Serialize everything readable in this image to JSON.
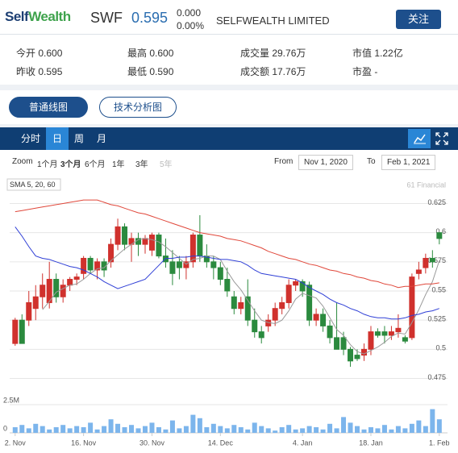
{
  "header": {
    "logo": [
      "Self",
      "Wealth"
    ],
    "symbol": "SWF",
    "price": "0.595",
    "change": "0.000",
    "change_pct": "0.00%",
    "company": "SELFWEALTH LIMITED",
    "follow_button": "关注"
  },
  "stats": [
    [
      "今开 0.600",
      "最高 0.600",
      "成交量 29.76万",
      "市值 1.22亿"
    ],
    [
      "昨收 0.595",
      "最低 0.590",
      "成交额 17.76万",
      "市盈 -"
    ]
  ],
  "view_tabs": [
    "普通线图",
    "技术分析图"
  ],
  "period_tabs": [
    "分时",
    "日",
    "周",
    "月"
  ],
  "range_selector": {
    "label": "Zoom",
    "buttons": [
      "1个月",
      "3个月",
      "6个月",
      "1年",
      "3年",
      "5年"
    ],
    "from_label": "From",
    "from": "Nov 1, 2020",
    "to_label": "To",
    "to": "Feb 1, 2021"
  },
  "chart_data": {
    "type": "candlestick",
    "indicator_label": "SMA 5, 20, 60",
    "credit": "61 Financial",
    "xlim": [
      -0.8,
      63.2
    ],
    "xticks": [
      {
        "value": 0,
        "label": "2. Nov"
      },
      {
        "value": 10,
        "label": "16. Nov"
      },
      {
        "value": 20,
        "label": "30. Nov"
      },
      {
        "value": 30,
        "label": "14. Dec"
      },
      {
        "value": 42,
        "label": "4. Jan"
      },
      {
        "value": 52,
        "label": "18. Jan"
      },
      {
        "value": 62,
        "label": "1. Feb"
      }
    ],
    "ylim": [
      0.465,
      0.635
    ],
    "yticks": [
      0.475,
      0.5,
      0.525,
      0.55,
      0.575,
      0.6,
      0.625
    ],
    "grid": true,
    "colors": {
      "up": "#d0312d",
      "down": "#2b8a3e"
    },
    "open": [
      0.505,
      0.525,
      0.525,
      0.535,
      0.545,
      0.54,
      0.56,
      0.545,
      0.555,
      0.56,
      0.565,
      0.578,
      0.568,
      0.575,
      0.575,
      0.59,
      0.605,
      0.59,
      0.595,
      0.59,
      0.585,
      0.598,
      0.58,
      0.575,
      0.575,
      0.57,
      0.575,
      0.598,
      0.58,
      0.575,
      0.57,
      0.56,
      0.545,
      0.535,
      0.545,
      0.525,
      0.515,
      0.52,
      0.525,
      0.535,
      0.54,
      0.555,
      0.558,
      0.555,
      0.525,
      0.53,
      0.52,
      0.51,
      0.51,
      0.5,
      0.495,
      0.495,
      0.5,
      0.515,
      0.515,
      0.512,
      0.515,
      0.51,
      0.51,
      0.565,
      0.57,
      0.578,
      0.6
    ],
    "high": [
      0.527,
      0.53,
      0.55,
      0.555,
      0.565,
      0.575,
      0.565,
      0.56,
      0.562,
      0.565,
      0.58,
      0.58,
      0.578,
      0.578,
      0.595,
      0.612,
      0.608,
      0.6,
      0.6,
      0.598,
      0.6,
      0.6,
      0.595,
      0.585,
      0.58,
      0.58,
      0.6,
      0.615,
      0.59,
      0.58,
      0.575,
      0.57,
      0.55,
      0.545,
      0.56,
      0.535,
      0.52,
      0.53,
      0.54,
      0.545,
      0.56,
      0.56,
      0.56,
      0.558,
      0.535,
      0.535,
      0.525,
      0.54,
      0.515,
      0.502,
      0.5,
      0.505,
      0.52,
      0.518,
      0.52,
      0.52,
      0.53,
      0.512,
      0.565,
      0.575,
      0.582,
      0.585,
      0.6
    ],
    "low": [
      0.503,
      0.505,
      0.52,
      0.525,
      0.535,
      0.535,
      0.54,
      0.54,
      0.55,
      0.555,
      0.56,
      0.565,
      0.56,
      0.562,
      0.57,
      0.585,
      0.585,
      0.575,
      0.58,
      0.582,
      0.58,
      0.578,
      0.57,
      0.555,
      0.56,
      0.56,
      0.57,
      0.575,
      0.57,
      0.56,
      0.555,
      0.545,
      0.53,
      0.53,
      0.52,
      0.51,
      0.505,
      0.515,
      0.52,
      0.53,
      0.535,
      0.55,
      0.545,
      0.52,
      0.52,
      0.515,
      0.505,
      0.5,
      0.495,
      0.485,
      0.49,
      0.49,
      0.495,
      0.51,
      0.505,
      0.508,
      0.51,
      0.505,
      0.508,
      0.56,
      0.565,
      0.57,
      0.59
    ],
    "close": [
      0.525,
      0.505,
      0.54,
      0.545,
      0.555,
      0.56,
      0.545,
      0.555,
      0.56,
      0.562,
      0.578,
      0.568,
      0.575,
      0.568,
      0.59,
      0.605,
      0.59,
      0.595,
      0.59,
      0.595,
      0.598,
      0.58,
      0.575,
      0.565,
      0.57,
      0.575,
      0.598,
      0.58,
      0.575,
      0.57,
      0.56,
      0.55,
      0.535,
      0.54,
      0.525,
      0.515,
      0.51,
      0.525,
      0.535,
      0.54,
      0.555,
      0.558,
      0.55,
      0.525,
      0.53,
      0.52,
      0.51,
      0.5,
      0.5,
      0.49,
      0.492,
      0.5,
      0.515,
      0.512,
      0.512,
      0.515,
      0.518,
      0.507,
      0.562,
      0.568,
      0.578,
      0.575,
      0.595
    ],
    "lines": [
      {
        "color": "#9a9a9a",
        "values": [
          null,
          null,
          null,
          null,
          0.534,
          0.541,
          0.549,
          0.552,
          0.555,
          0.556,
          0.56,
          0.565,
          0.569,
          0.57,
          0.576,
          0.581,
          0.586,
          0.59,
          0.594,
          0.595,
          0.594,
          0.592,
          0.588,
          0.583,
          0.578,
          0.573,
          0.577,
          0.578,
          0.58,
          0.58,
          0.577,
          0.567,
          0.558,
          0.551,
          0.542,
          0.533,
          0.525,
          0.523,
          0.522,
          0.525,
          0.533,
          0.543,
          0.548,
          0.546,
          0.544,
          0.537,
          0.527,
          0.517,
          0.512,
          0.504,
          0.498,
          0.496,
          0.499,
          0.502,
          0.506,
          0.511,
          0.514,
          0.513,
          0.523,
          0.534,
          0.547,
          0.558,
          0.576
        ]
      },
      {
        "color": "#2f3fd6",
        "values": [
          0.605,
          0.597,
          0.588,
          0.58,
          0.578,
          0.577,
          0.575,
          0.573,
          0.571,
          0.57,
          0.568,
          0.565,
          0.562,
          0.558,
          0.555,
          0.552,
          0.554,
          0.556,
          0.558,
          0.56,
          0.566,
          0.572,
          0.578,
          0.578,
          0.579,
          0.579,
          0.58,
          0.58,
          0.579,
          0.578,
          0.577,
          0.577,
          0.576,
          0.575,
          0.572,
          0.568,
          0.565,
          0.564,
          0.563,
          0.562,
          0.561,
          0.56,
          0.557,
          0.553,
          0.55,
          0.547,
          0.543,
          0.54,
          0.538,
          0.535,
          0.533,
          0.53,
          0.528,
          0.527,
          0.527,
          0.526,
          0.526,
          0.527,
          0.529,
          0.53,
          0.532,
          0.533,
          0.535
        ]
      },
      {
        "color": "#e0473a",
        "values": [
          0.618,
          0.619,
          0.62,
          0.621,
          0.622,
          0.623,
          0.624,
          0.625,
          0.626,
          0.627,
          0.628,
          0.628,
          0.628,
          0.626,
          0.624,
          0.623,
          0.621,
          0.619,
          0.617,
          0.616,
          0.614,
          0.612,
          0.61,
          0.608,
          0.606,
          0.604,
          0.602,
          0.6,
          0.599,
          0.598,
          0.597,
          0.595,
          0.594,
          0.593,
          0.591,
          0.589,
          0.587,
          0.584,
          0.582,
          0.58,
          0.578,
          0.577,
          0.575,
          0.573,
          0.572,
          0.57,
          0.568,
          0.567,
          0.565,
          0.564,
          0.562,
          0.561,
          0.559,
          0.558,
          0.556,
          0.555,
          0.553,
          0.554,
          0.554,
          0.555,
          0.556,
          0.556,
          0.557
        ]
      }
    ],
    "volume": {
      "color": "#7cb5ec",
      "ylim": [
        0,
        2500000
      ],
      "yticks": [
        0,
        {
          "value": 2500000,
          "label": "2.5M"
        }
      ],
      "values": [
        500000,
        700000,
        400000,
        800000,
        600000,
        300000,
        500000,
        700000,
        400000,
        600000,
        500000,
        900000,
        300000,
        600000,
        1200000,
        800000,
        500000,
        700000,
        400000,
        600000,
        900000,
        500000,
        300000,
        1100000,
        400000,
        600000,
        1600000,
        1300000,
        500000,
        800000,
        600000,
        400000,
        700000,
        500000,
        300000,
        900000,
        600000,
        400000,
        200000,
        500000,
        700000,
        300000,
        400000,
        600000,
        500000,
        300000,
        800000,
        400000,
        1400000,
        900000,
        600000,
        300000,
        500000,
        400000,
        700000,
        300000,
        600000,
        400000,
        800000,
        1100000,
        600000,
        2100000,
        1200000
      ]
    }
  }
}
